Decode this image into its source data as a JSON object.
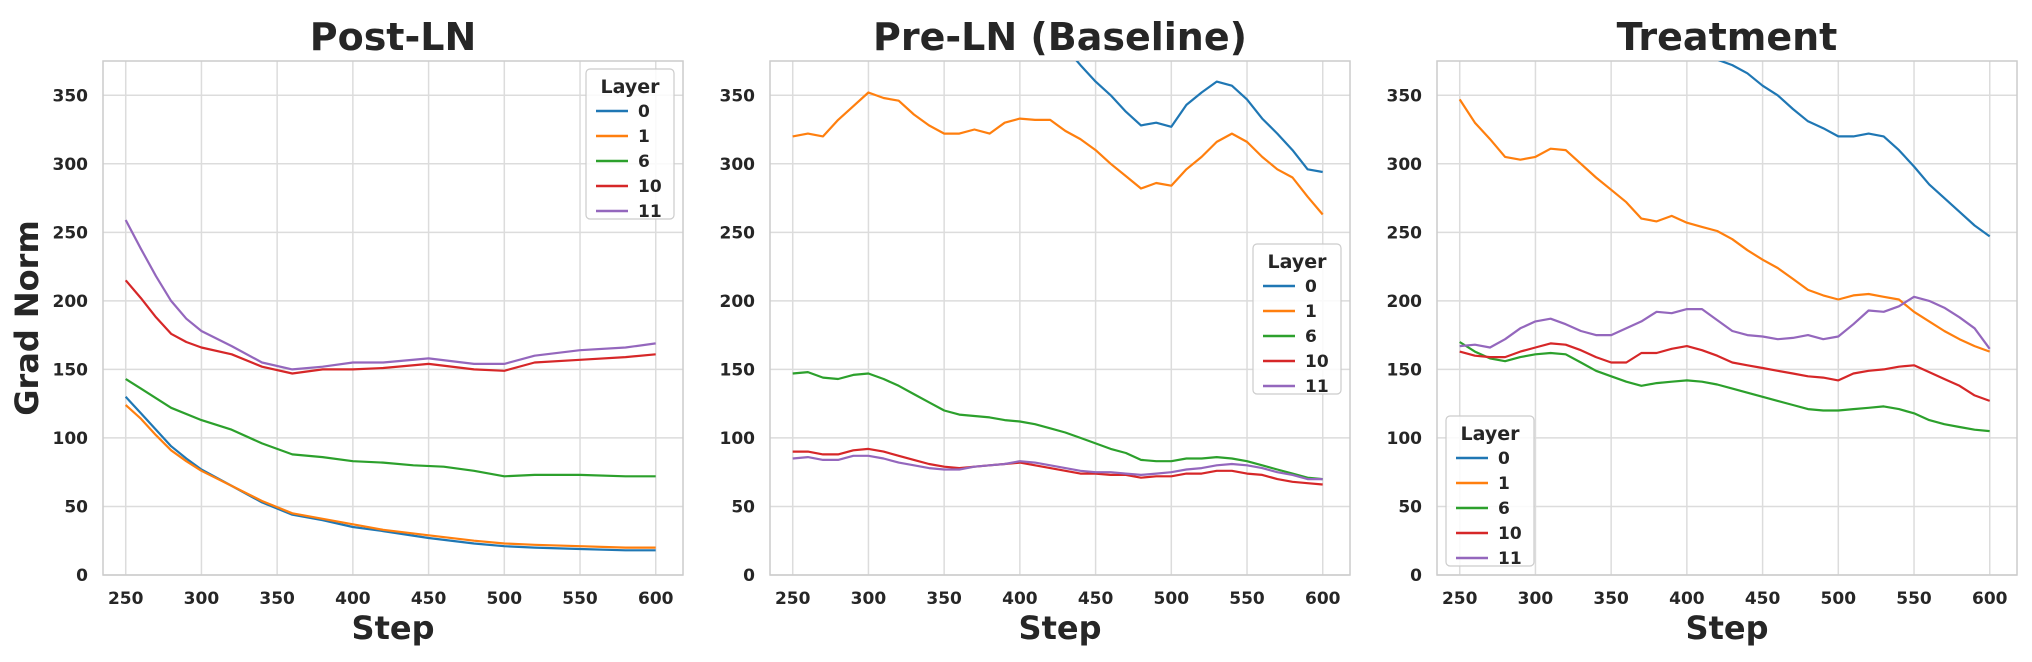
{
  "figure": {
    "ylabel": "Grad Norm"
  },
  "colors": {
    "0": "#1f77b4",
    "1": "#ff7f0e",
    "6": "#2ca02c",
    "10": "#d62728",
    "11": "#9467bd",
    "grid": "#dcdcdc",
    "frame": "#cccccc"
  },
  "chart_data": [
    {
      "type": "line",
      "title": "Post-LN",
      "xlabel": "Step",
      "ylabel": "Grad Norm",
      "xlim": [
        235,
        618
      ],
      "ylim": [
        0,
        375
      ],
      "xticks": [
        250,
        300,
        350,
        400,
        450,
        500,
        550,
        600
      ],
      "yticks": [
        0,
        50,
        100,
        150,
        200,
        250,
        300,
        350
      ],
      "grid": true,
      "legend": {
        "title": "Layer",
        "position": "top-right"
      },
      "series": [
        {
          "name": "0",
          "color": "#1f77b4",
          "x": [
            250,
            260,
            270,
            280,
            290,
            300,
            320,
            340,
            360,
            380,
            400,
            420,
            450,
            480,
            500,
            520,
            550,
            580,
            600
          ],
          "y": [
            130,
            118,
            106,
            94,
            85,
            77,
            65,
            53,
            44,
            40,
            35,
            32,
            27,
            23,
            21,
            20,
            19,
            18,
            18
          ]
        },
        {
          "name": "1",
          "color": "#ff7f0e",
          "x": [
            250,
            260,
            270,
            280,
            290,
            300,
            320,
            340,
            360,
            380,
            400,
            420,
            450,
            480,
            500,
            520,
            550,
            580,
            600
          ],
          "y": [
            124,
            114,
            102,
            91,
            83,
            76,
            65,
            54,
            45,
            41,
            37,
            33,
            29,
            25,
            23,
            22,
            21,
            20,
            20
          ]
        },
        {
          "name": "6",
          "color": "#2ca02c",
          "x": [
            250,
            260,
            280,
            300,
            320,
            340,
            360,
            380,
            400,
            420,
            440,
            460,
            480,
            500,
            520,
            550,
            580,
            600
          ],
          "y": [
            143,
            136,
            122,
            113,
            106,
            96,
            88,
            86,
            83,
            82,
            80,
            79,
            76,
            72,
            73,
            73,
            72,
            72
          ]
        },
        {
          "name": "10",
          "color": "#d62728",
          "x": [
            250,
            260,
            270,
            280,
            290,
            300,
            320,
            340,
            360,
            380,
            400,
            420,
            450,
            480,
            500,
            520,
            550,
            580,
            600
          ],
          "y": [
            215,
            202,
            188,
            176,
            170,
            166,
            161,
            152,
            147,
            150,
            150,
            151,
            154,
            150,
            149,
            155,
            157,
            159,
            161
          ]
        },
        {
          "name": "11",
          "color": "#9467bd",
          "x": [
            250,
            260,
            270,
            280,
            290,
            300,
            320,
            340,
            360,
            380,
            400,
            420,
            450,
            480,
            500,
            520,
            550,
            580,
            600
          ],
          "y": [
            259,
            238,
            218,
            200,
            187,
            178,
            167,
            155,
            150,
            152,
            155,
            155,
            158,
            154,
            154,
            160,
            164,
            166,
            169
          ]
        }
      ]
    },
    {
      "type": "line",
      "title": "Pre-LN (Baseline)",
      "xlabel": "Step",
      "ylabel": "",
      "xlim": [
        235,
        618
      ],
      "ylim": [
        0,
        375
      ],
      "xticks": [
        250,
        300,
        350,
        400,
        450,
        500,
        550,
        600
      ],
      "yticks": [
        0,
        50,
        100,
        150,
        200,
        250,
        300,
        350
      ],
      "grid": true,
      "legend": {
        "title": "Layer",
        "position": "center-right"
      },
      "series": [
        {
          "name": "0",
          "color": "#1f77b4",
          "x": [
            420,
            430,
            440,
            450,
            460,
            470,
            480,
            490,
            500,
            510,
            520,
            530,
            540,
            550,
            560,
            570,
            580,
            590,
            600
          ],
          "y": [
            400,
            385,
            372,
            360,
            350,
            338,
            328,
            330,
            327,
            343,
            352,
            360,
            357,
            347,
            333,
            322,
            310,
            296,
            294
          ]
        },
        {
          "name": "1",
          "color": "#ff7f0e",
          "x": [
            250,
            260,
            270,
            280,
            290,
            300,
            310,
            320,
            330,
            340,
            350,
            360,
            370,
            380,
            390,
            400,
            410,
            420,
            430,
            440,
            450,
            460,
            470,
            480,
            490,
            500,
            510,
            520,
            530,
            540,
            550,
            560,
            570,
            580,
            590,
            600
          ],
          "y": [
            320,
            322,
            320,
            332,
            342,
            352,
            348,
            346,
            336,
            328,
            322,
            322,
            325,
            322,
            330,
            333,
            332,
            332,
            324,
            318,
            310,
            300,
            291,
            282,
            286,
            284,
            296,
            305,
            316,
            322,
            316,
            305,
            296,
            290,
            276,
            263
          ]
        },
        {
          "name": "6",
          "color": "#2ca02c",
          "x": [
            250,
            260,
            270,
            280,
            290,
            300,
            310,
            320,
            330,
            340,
            350,
            360,
            370,
            380,
            390,
            400,
            410,
            420,
            430,
            440,
            450,
            460,
            470,
            480,
            490,
            500,
            510,
            520,
            530,
            540,
            550,
            560,
            570,
            580,
            590,
            600
          ],
          "y": [
            147,
            148,
            144,
            143,
            146,
            147,
            143,
            138,
            132,
            126,
            120,
            117,
            116,
            115,
            113,
            112,
            110,
            107,
            104,
            100,
            96,
            92,
            89,
            84,
            83,
            83,
            85,
            85,
            86,
            85,
            83,
            80,
            77,
            74,
            71,
            70
          ]
        },
        {
          "name": "10",
          "color": "#d62728",
          "x": [
            250,
            260,
            270,
            280,
            290,
            300,
            310,
            320,
            330,
            340,
            350,
            360,
            370,
            380,
            390,
            400,
            410,
            420,
            430,
            440,
            450,
            460,
            470,
            480,
            490,
            500,
            510,
            520,
            530,
            540,
            550,
            560,
            570,
            580,
            590,
            600
          ],
          "y": [
            90,
            90,
            88,
            88,
            91,
            92,
            90,
            87,
            84,
            81,
            79,
            78,
            79,
            80,
            81,
            82,
            80,
            78,
            76,
            74,
            74,
            73,
            73,
            71,
            72,
            72,
            74,
            74,
            76,
            76,
            74,
            73,
            70,
            68,
            67,
            66
          ]
        },
        {
          "name": "11",
          "color": "#9467bd",
          "x": [
            250,
            260,
            270,
            280,
            290,
            300,
            310,
            320,
            330,
            340,
            350,
            360,
            370,
            380,
            390,
            400,
            410,
            420,
            430,
            440,
            450,
            460,
            470,
            480,
            490,
            500,
            510,
            520,
            530,
            540,
            550,
            560,
            570,
            580,
            590,
            600
          ],
          "y": [
            85,
            86,
            84,
            84,
            87,
            87,
            85,
            82,
            80,
            78,
            77,
            77,
            79,
            80,
            81,
            83,
            82,
            80,
            78,
            76,
            75,
            75,
            74,
            73,
            74,
            75,
            77,
            78,
            80,
            81,
            80,
            78,
            75,
            73,
            70,
            70
          ]
        }
      ]
    },
    {
      "type": "line",
      "title": "Treatment",
      "xlabel": "Step",
      "ylabel": "",
      "xlim": [
        235,
        618
      ],
      "ylim": [
        0,
        375
      ],
      "xticks": [
        250,
        300,
        350,
        400,
        450,
        500,
        550,
        600
      ],
      "yticks": [
        0,
        50,
        100,
        150,
        200,
        250,
        300,
        350
      ],
      "grid": true,
      "legend": {
        "title": "Layer",
        "position": "bottom-left"
      },
      "series": [
        {
          "name": "0",
          "color": "#1f77b4",
          "x": [
            415,
            420,
            430,
            440,
            450,
            460,
            470,
            480,
            490,
            500,
            510,
            520,
            530,
            540,
            550,
            560,
            570,
            580,
            590,
            600
          ],
          "y": [
            380,
            376,
            372,
            366,
            357,
            350,
            340,
            331,
            326,
            320,
            320,
            322,
            320,
            310,
            298,
            285,
            275,
            265,
            255,
            247
          ]
        },
        {
          "name": "1",
          "color": "#ff7f0e",
          "x": [
            250,
            260,
            270,
            280,
            290,
            300,
            310,
            320,
            330,
            340,
            350,
            360,
            370,
            380,
            390,
            400,
            410,
            420,
            430,
            440,
            450,
            460,
            470,
            480,
            490,
            500,
            510,
            520,
            530,
            540,
            550,
            560,
            570,
            580,
            590,
            600
          ],
          "y": [
            347,
            330,
            318,
            305,
            303,
            305,
            311,
            310,
            300,
            290,
            281,
            272,
            260,
            258,
            262,
            257,
            254,
            251,
            245,
            237,
            230,
            224,
            216,
            208,
            204,
            201,
            204,
            205,
            203,
            201,
            192,
            185,
            178,
            172,
            167,
            163
          ]
        },
        {
          "name": "6",
          "color": "#2ca02c",
          "x": [
            250,
            260,
            270,
            280,
            290,
            300,
            310,
            320,
            330,
            340,
            350,
            360,
            370,
            380,
            390,
            400,
            410,
            420,
            430,
            440,
            450,
            460,
            470,
            480,
            490,
            500,
            510,
            520,
            530,
            540,
            550,
            560,
            570,
            580,
            590,
            600
          ],
          "y": [
            170,
            163,
            158,
            156,
            159,
            161,
            162,
            161,
            155,
            149,
            145,
            141,
            138,
            140,
            141,
            142,
            141,
            139,
            136,
            133,
            130,
            127,
            124,
            121,
            120,
            120,
            121,
            122,
            123,
            121,
            118,
            113,
            110,
            108,
            106,
            105
          ]
        },
        {
          "name": "10",
          "color": "#d62728",
          "x": [
            250,
            260,
            270,
            280,
            290,
            300,
            310,
            320,
            330,
            340,
            350,
            360,
            370,
            380,
            390,
            400,
            410,
            420,
            430,
            440,
            450,
            460,
            470,
            480,
            490,
            500,
            510,
            520,
            530,
            540,
            550,
            560,
            570,
            580,
            590,
            600
          ],
          "y": [
            163,
            160,
            159,
            159,
            163,
            166,
            169,
            168,
            164,
            159,
            155,
            155,
            162,
            162,
            165,
            167,
            164,
            160,
            155,
            153,
            151,
            149,
            147,
            145,
            144,
            142,
            147,
            149,
            150,
            152,
            153,
            148,
            143,
            138,
            131,
            127
          ]
        },
        {
          "name": "11",
          "color": "#9467bd",
          "x": [
            250,
            260,
            270,
            280,
            290,
            300,
            310,
            320,
            330,
            340,
            350,
            360,
            370,
            380,
            390,
            400,
            410,
            420,
            430,
            440,
            450,
            460,
            470,
            480,
            490,
            500,
            510,
            520,
            530,
            540,
            550,
            560,
            570,
            580,
            590,
            600
          ],
          "y": [
            167,
            168,
            166,
            172,
            180,
            185,
            187,
            183,
            178,
            175,
            175,
            180,
            185,
            192,
            191,
            194,
            194,
            186,
            178,
            175,
            174,
            172,
            173,
            175,
            172,
            174,
            183,
            193,
            192,
            196,
            203,
            200,
            195,
            188,
            180,
            165
          ]
        }
      ]
    }
  ]
}
